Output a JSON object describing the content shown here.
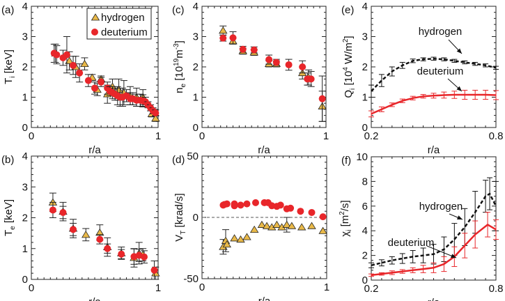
{
  "colors": {
    "hydrogen_marker": "#e9b949",
    "deuterium_marker": "#e8262a",
    "hydrogen_curve": "#111111",
    "deuterium_curve": "#e8262a"
  },
  "chart_data": [
    {
      "id": "a",
      "panel_label": "(a)",
      "type": "scatter",
      "xlabel": "r/a",
      "ylabel": [
        {
          "t": "T"
        },
        {
          "t": "i",
          "sub": true
        },
        {
          "t": " [keV]"
        }
      ],
      "xlim": [
        0,
        1
      ],
      "ylim": [
        0,
        4
      ],
      "xticks": [
        "0",
        "1"
      ],
      "yticks": [
        "0",
        "1",
        "2",
        "3",
        "4"
      ],
      "legend": {
        "placement": "top-right",
        "entries": [
          "hydrogen",
          "deuterium"
        ]
      },
      "series": [
        {
          "name": "hydrogen",
          "marker": "triangle",
          "x": [
            0.19,
            0.3,
            0.35,
            0.42,
            0.48,
            0.52,
            0.55,
            0.6,
            0.64,
            0.69,
            0.73,
            0.78,
            0.83,
            0.88,
            0.95,
            0.98
          ],
          "y": [
            2.45,
            2.2,
            2.0,
            2.1,
            1.65,
            1.25,
            1.6,
            1.1,
            1.35,
            1.25,
            1.15,
            1.05,
            1.0,
            1.0,
            0.45,
            0.3
          ],
          "err": [
            0.3,
            0.3,
            0.35,
            0.2,
            0.1,
            0.2,
            0.1,
            0.3,
            0.25,
            0.35,
            0.4,
            0.3,
            0.3,
            0.25,
            0.1,
            0.1
          ]
        },
        {
          "name": "deuterium",
          "marker": "circle",
          "x": [
            0.18,
            0.2,
            0.25,
            0.28,
            0.33,
            0.38,
            0.45,
            0.5,
            0.55,
            0.6,
            0.62,
            0.64,
            0.66,
            0.68,
            0.7,
            0.72,
            0.75,
            0.78,
            0.8,
            0.83,
            0.86,
            0.88,
            0.9,
            0.92,
            0.94,
            0.96,
            0.98
          ],
          "y": [
            2.45,
            2.4,
            2.3,
            2.4,
            2.05,
            1.8,
            1.55,
            1.3,
            1.5,
            1.3,
            1.2,
            1.15,
            1.1,
            1.05,
            1.0,
            1.0,
            1.05,
            0.95,
            0.95,
            0.9,
            0.9,
            0.88,
            0.85,
            0.75,
            0.65,
            0.55,
            0.48
          ],
          "err": [
            0.3,
            0.3,
            0.25,
            0.6,
            0.3,
            0.3,
            0.2,
            0.2,
            0.15,
            0.2,
            0.15,
            0.2,
            0.2,
            0.3,
            0.3,
            0.3,
            0.2,
            0.2,
            0.2,
            0.2,
            0.2,
            0.2,
            0.15,
            0.1,
            0.1,
            0.1,
            0.1
          ]
        }
      ]
    },
    {
      "id": "b",
      "panel_label": "(b)",
      "type": "scatter",
      "xlabel": "r/a",
      "ylabel": [
        {
          "t": "T"
        },
        {
          "t": "e",
          "sub": true
        },
        {
          "t": " [keV]"
        }
      ],
      "xlim": [
        0,
        1
      ],
      "ylim": [
        0,
        4
      ],
      "xticks": [
        "0",
        "1"
      ],
      "yticks": [
        "0",
        "1",
        "2",
        "3",
        "4"
      ],
      "series": [
        {
          "name": "hydrogen",
          "marker": "triangle",
          "x": [
            0.17,
            0.25,
            0.33,
            0.43,
            0.54,
            0.6,
            0.71,
            0.81,
            0.85,
            0.88,
            0.98
          ],
          "y": [
            2.5,
            2.2,
            1.65,
            1.45,
            1.52,
            1.05,
            0.85,
            0.7,
            0.85,
            0.8,
            0.2
          ],
          "err": [
            0.3,
            0.3,
            0.3,
            0.2,
            0.25,
            0.3,
            0.2,
            0.3,
            0.35,
            0.2,
            0.2
          ]
        },
        {
          "name": "deuterium",
          "marker": "circle",
          "x": [
            0.17,
            0.25,
            0.33,
            0.54,
            0.6,
            0.71,
            0.81,
            0.85,
            0.89,
            0.97
          ],
          "y": [
            2.25,
            2.17,
            1.62,
            1.3,
            1.0,
            0.82,
            0.74,
            0.78,
            0.73,
            0.3
          ],
          "err": [
            0.25,
            0.2,
            0.2,
            0.15,
            0.15,
            0.15,
            0.25,
            0.2,
            0.2,
            0.3
          ]
        }
      ]
    },
    {
      "id": "c",
      "panel_label": "(c)",
      "type": "scatter",
      "xlabel": "r/a",
      "ylabel": [
        {
          "t": "n"
        },
        {
          "t": "e",
          "sub": true
        },
        {
          "t": " [10"
        },
        {
          "t": "19",
          "sup": true
        },
        {
          "t": "m"
        },
        {
          "t": "-3",
          "sup": true
        },
        {
          "t": "]"
        }
      ],
      "xlim": [
        0,
        1
      ],
      "ylim": [
        0,
        4
      ],
      "xticks": [
        "0",
        "1"
      ],
      "yticks": [
        "0",
        "1",
        "2",
        "3",
        "4"
      ],
      "series": [
        {
          "name": "hydrogen",
          "marker": "triangle",
          "x": [
            0.17,
            0.25,
            0.33,
            0.42,
            0.54,
            0.6,
            0.81,
            0.86,
            0.97
          ],
          "y": [
            3.2,
            2.85,
            2.52,
            2.48,
            2.1,
            2.1,
            1.8,
            1.65,
            0.7
          ],
          "err": [
            0.15,
            0.1,
            0.1,
            0.1,
            0.1,
            0.1,
            0.2,
            0.25,
            0.5
          ]
        },
        {
          "name": "deuterium",
          "marker": "circle",
          "x": [
            0.17,
            0.25,
            0.33,
            0.42,
            0.54,
            0.6,
            0.7,
            0.81,
            0.85,
            0.88,
            0.97
          ],
          "y": [
            2.95,
            2.96,
            2.58,
            2.56,
            2.24,
            2.15,
            2.07,
            2.0,
            1.6,
            1.6,
            0.95
          ],
          "err": [
            0.1,
            0.2,
            0.1,
            0.1,
            0.15,
            0.1,
            0.18,
            0.2,
            0.2,
            0.25,
            0.75
          ]
        }
      ]
    },
    {
      "id": "d",
      "panel_label": "(d)",
      "type": "scatter",
      "xlabel": "r/a",
      "ylabel": [
        {
          "t": "V"
        },
        {
          "t": "T",
          "sub": true
        },
        {
          "t": " [krad/s]"
        }
      ],
      "xlim": [
        0,
        1
      ],
      "ylim": [
        -50,
        50
      ],
      "xticks": [
        "0",
        "1"
      ],
      "yticks": [
        "-50",
        "0",
        "50"
      ],
      "zero_line": true,
      "series": [
        {
          "name": "hydrogen",
          "marker": "triangle",
          "x": [
            0.17,
            0.19,
            0.2,
            0.26,
            0.31,
            0.36,
            0.42,
            0.48,
            0.52,
            0.56,
            0.6,
            0.64,
            0.68,
            0.72,
            0.8,
            0.88,
            0.97
          ],
          "y": [
            -24,
            -19,
            -22,
            -17,
            -18,
            -16,
            -10,
            -6,
            -7,
            -8,
            -6,
            -8,
            -6,
            -7,
            -8,
            -7,
            -11
          ],
          "err": [
            6,
            9,
            0,
            0,
            0,
            0,
            0,
            0,
            0,
            0,
            0,
            0,
            6,
            0,
            0,
            0,
            0
          ]
        },
        {
          "name": "deuterium",
          "marker": "circle",
          "x": [
            0.17,
            0.18,
            0.2,
            0.26,
            0.26,
            0.31,
            0.36,
            0.43,
            0.5,
            0.53,
            0.56,
            0.6,
            0.63,
            0.68,
            0.71,
            0.79,
            0.88,
            0.97
          ],
          "y": [
            10,
            10.5,
            11,
            11,
            9.5,
            10,
            11,
            12,
            12,
            12,
            9.5,
            9,
            10,
            7,
            7.5,
            5,
            4,
            0.5
          ],
          "err": [
            0,
            0,
            0,
            0,
            0,
            0,
            0,
            0,
            0,
            0,
            0,
            0,
            0,
            0,
            0,
            0,
            0,
            0
          ]
        }
      ]
    },
    {
      "id": "e",
      "panel_label": "(e)",
      "type": "line",
      "xlabel": "r/a",
      "ylabel": [
        {
          "t": "Q"
        },
        {
          "t": "i",
          "sub": true
        },
        {
          "t": " [10"
        },
        {
          "t": "4",
          "sup": true
        },
        {
          "t": " W/m"
        },
        {
          "t": "2",
          "sup": true
        },
        {
          "t": "]"
        }
      ],
      "xlim": [
        0.2,
        0.8
      ],
      "ylim": [
        0,
        4
      ],
      "xticks": [
        "0.2",
        "0.8"
      ],
      "yticks": [
        "0",
        "1",
        "2",
        "3",
        "4"
      ],
      "annotations": [
        "hydrogen",
        "deuterium"
      ],
      "series": [
        {
          "name": "hydrogen",
          "style": "dashed",
          "x": [
            0.2,
            0.25,
            0.3,
            0.35,
            0.4,
            0.45,
            0.5,
            0.55,
            0.6,
            0.65,
            0.7,
            0.75,
            0.8
          ],
          "y": [
            1.2,
            1.55,
            1.85,
            2.05,
            2.2,
            2.25,
            2.27,
            2.25,
            2.2,
            2.15,
            2.1,
            2.05,
            1.97
          ],
          "err": [
            0.2,
            0.2,
            0.15,
            0.1,
            0.06,
            0.05,
            0.05,
            0.05,
            0.05,
            0.05,
            0.05,
            0.05,
            0.05
          ]
        },
        {
          "name": "deuterium",
          "style": "solid",
          "x": [
            0.2,
            0.25,
            0.3,
            0.35,
            0.4,
            0.45,
            0.5,
            0.55,
            0.6,
            0.65,
            0.7,
            0.75,
            0.8
          ],
          "y": [
            0.45,
            0.6,
            0.75,
            0.88,
            0.97,
            1.03,
            1.05,
            1.07,
            1.08,
            1.08,
            1.08,
            1.08,
            1.07
          ],
          "err": [
            0.1,
            0.08,
            0.06,
            0.06,
            0.06,
            0.06,
            0.08,
            0.1,
            0.12,
            0.15,
            0.15,
            0.15,
            0.15
          ]
        }
      ]
    },
    {
      "id": "f",
      "panel_label": "(f)",
      "type": "line",
      "xlabel": "r/a",
      "ylabel": [
        {
          "t": "χ"
        },
        {
          "t": "i",
          "sub": true
        },
        {
          "t": " [m"
        },
        {
          "t": "2",
          "sup": true
        },
        {
          "t": "/s]"
        }
      ],
      "xlim": [
        0.2,
        0.8
      ],
      "ylim": [
        0,
        10
      ],
      "xticks": [
        "0.2",
        "0.8"
      ],
      "yticks": [
        "0",
        "2",
        "4",
        "6",
        "8",
        "10"
      ],
      "annotations": [
        "hydrogen",
        "deuterium"
      ],
      "series": [
        {
          "name": "hydrogen",
          "style": "dashed",
          "x": [
            0.2,
            0.25,
            0.3,
            0.35,
            0.4,
            0.45,
            0.5,
            0.55,
            0.6,
            0.65,
            0.7,
            0.75,
            0.77,
            0.8
          ],
          "y": [
            1.2,
            1.4,
            1.6,
            1.75,
            1.9,
            2.0,
            2.1,
            2.5,
            3.3,
            4.3,
            5.5,
            6.8,
            7.0,
            6.0
          ],
          "err": [
            0.2,
            0.25,
            0.3,
            0.4,
            0.5,
            0.6,
            0.8,
            1.0,
            1.3,
            1.5,
            1.7,
            1.3,
            1.3,
            2.0
          ]
        },
        {
          "name": "deuterium",
          "style": "solid",
          "x": [
            0.2,
            0.25,
            0.3,
            0.35,
            0.4,
            0.45,
            0.5,
            0.55,
            0.6,
            0.65,
            0.7,
            0.76,
            0.8
          ],
          "y": [
            0.4,
            0.5,
            0.6,
            0.7,
            0.8,
            0.9,
            1.0,
            1.3,
            1.9,
            2.8,
            3.7,
            4.5,
            4.1
          ],
          "err": [
            0.1,
            0.1,
            0.15,
            0.15,
            0.2,
            0.3,
            0.4,
            0.6,
            0.8,
            1.0,
            1.1,
            1.0,
            0.8
          ]
        }
      ]
    }
  ]
}
